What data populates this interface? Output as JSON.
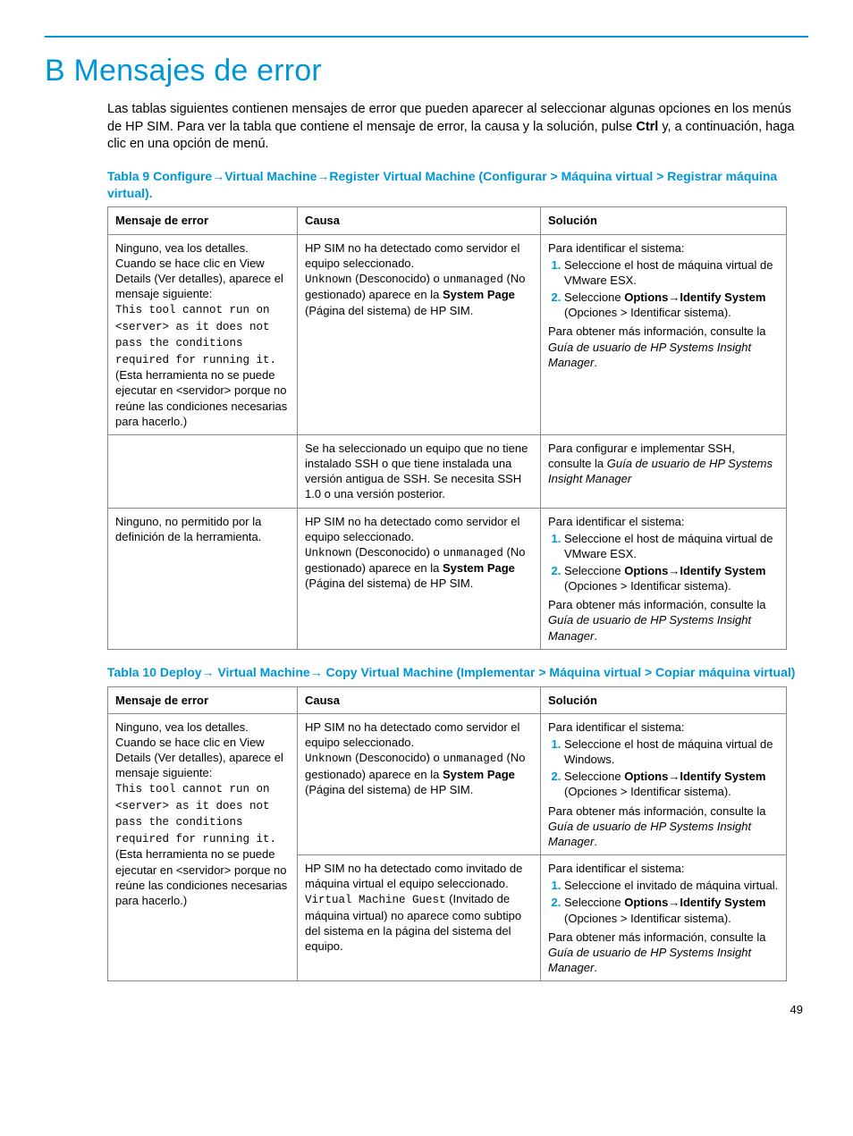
{
  "page_number": "49",
  "title": "B Mensajes de error",
  "intro_html": "Las tablas siguientes contienen mensajes de error que pueden aparecer al seleccionar algunas opciones en los menús de HP SIM. Para ver la tabla que contiene el mensaje de error, la causa y la solución, pulse <span class='b'>Ctrl</span> y, a continuación, haga clic en una opción de menú.",
  "colors": {
    "accent": "#0096d6",
    "text": "#000000",
    "border": "#888888"
  },
  "table9": {
    "caption_html": "Tabla 9  Configure→Virtual Machine→Register Virtual Machine (Configurar > Máquina virtual > Registrar máquina virtual).",
    "headers": [
      "Mensaje de error",
      "Causa",
      "Solución"
    ],
    "rows": [
      {
        "msg_html": "Ninguno, vea los detalles. Cuando se hace clic en View Details (Ver detalles), aparece el mensaje siguiente:<br><span class='mono'>This tool cannot run on &lt;server&gt; as it does not pass the conditions required for running it.</span> (Esta herramienta no se puede ejecutar en &lt;servidor&gt; porque no reúne las condiciones necesarias para hacerlo.)",
        "cause_html": "HP SIM no ha detectado como servidor el equipo seleccionado.<br><span class='mono'>Unknown</span> (Desconocido) o <span class='mono'>unmanaged</span> (No gestionado) aparece en la <span class='b'>System Page</span> (Página del sistema) de HP SIM.",
        "sol_html": "Para identificar el sistema:<ol class='steps'><li>Seleccione el host de máquina virtual de VMware ESX.</li><li>Seleccione <span class='b'>Options</span>→<span class='b'>Identify System</span> (Opciones > Identificar sistema).</li></ol>Para obtener más información, consulte la <span class='i'>Guía de usuario de HP Systems Insight Manager</span>."
      },
      {
        "msg_html": "",
        "cause_html": "Se ha seleccionado un equipo que no tiene instalado SSH o que tiene instalada una versión antigua de SSH. Se necesita SSH 1.0 o una versión posterior.",
        "sol_html": "Para configurar e implementar SSH, consulte la <span class='i'>Guía de usuario de HP Systems Insight Manager</span>"
      },
      {
        "msg_html": "Ninguno, no permitido por la definición de la herramienta.",
        "cause_html": "HP SIM no ha detectado como servidor el equipo seleccionado.<br><span class='mono'>Unknown</span> (Desconocido) o <span class='mono'>unmanaged</span> (No gestionado) aparece en la <span class='b'>System Page</span> (Página del sistema) de HP SIM.",
        "sol_html": "Para identificar el sistema:<ol class='steps'><li>Seleccione el host de máquina virtual de VMware ESX.</li><li>Seleccione <span class='b'>Options</span>→<span class='b'>Identify System</span> (Opciones > Identificar sistema).</li></ol>Para obtener más información, consulte la <span class='i'>Guía de usuario de HP Systems Insight Manager</span>."
      }
    ]
  },
  "table10": {
    "caption_html": "Tabla 10  Deploy→ Virtual Machine→ Copy Virtual Machine (Implementar > Máquina virtual > Copiar máquina virtual)",
    "headers": [
      "Mensaje de error",
      "Causa",
      "Solución"
    ],
    "merged_msg_html": "Ninguno, vea los detalles. Cuando se hace clic en View Details (Ver detalles), aparece el mensaje siguiente:<br><span class='mono'>This tool cannot run on &lt;server&gt; as it does not pass the conditions required for running it.</span> (Esta herramienta no se puede ejecutar en &lt;servidor&gt; porque no reúne las condiciones necesarias para hacerlo.)",
    "row1": {
      "cause_html": "HP SIM no ha detectado como servidor el equipo seleccionado.<br><span class='mono'>Unknown</span> (Desconocido) o <span class='mono'>unmanaged</span> (No gestionado) aparece en la <span class='b'>System Page</span> (Página del sistema) de HP SIM.",
      "sol_html": "Para identificar el sistema:<ol class='steps'><li>Seleccione el host de máquina virtual de Windows.</li><li>Seleccione <span class='b'>Options</span>→<span class='b'>Identify System</span> (Opciones > Identificar sistema).</li></ol>Para obtener más información, consulte la <span class='i'>Guía de usuario de HP Systems Insight Manager</span>."
    },
    "row2": {
      "cause_html": "HP SIM no ha detectado como invitado de máquina virtual el equipo seleccionado.<br><span class='mono'>Virtual Machine Guest</span> (Invitado de máquina virtual) no aparece como subtipo del sistema en la página del sistema del equipo.",
      "sol_html": "Para identificar el sistema:<ol class='steps'><li>Seleccione el invitado de máquina virtual.</li><li>Seleccione <span class='b'>Options</span>→<span class='b'>Identify System</span> (Opciones > Identificar sistema).</li></ol>Para obtener más información, consulte la <span class='i'>Guía de usuario de HP Systems Insight Manager</span>."
    }
  }
}
